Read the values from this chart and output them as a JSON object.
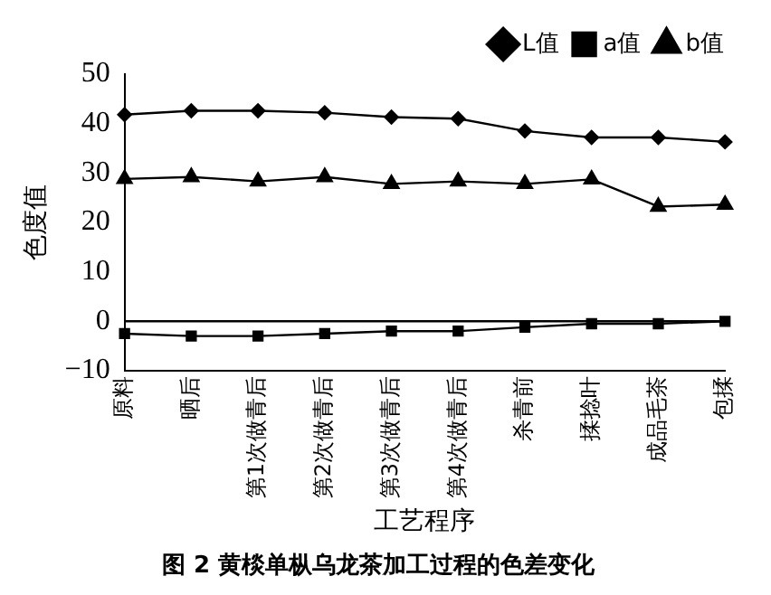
{
  "chart_data": {
    "type": "line",
    "title": "图 2 黄棪单枞乌龙茶加工过程的色差变化",
    "xlabel": "工艺程序",
    "ylabel": "色度值",
    "categories": [
      "原料",
      "晒后",
      "第1次做青后",
      "第2次做青后",
      "第3次做青后",
      "第4次做青后",
      "杀青前",
      "揉捻叶",
      "成品毛茶",
      "包揉"
    ],
    "series": [
      {
        "name": "L值",
        "color": "#000000",
        "marker": "diamond",
        "values": [
          41.8,
          42.6,
          42.6,
          42.2,
          41.3,
          41,
          38.5,
          37.2,
          37.2,
          36.3
        ]
      },
      {
        "name": "a值",
        "color": "#000000",
        "marker": "square",
        "values": [
          -2.5,
          -3,
          -3,
          -2.5,
          -2,
          -2,
          -1.2,
          -0.5,
          -0.5,
          0
        ]
      },
      {
        "name": "b值",
        "color": "#000000",
        "marker": "triangle",
        "values": [
          28.8,
          29.2,
          28.3,
          29.2,
          27.8,
          28.3,
          27.8,
          28.7,
          23.2,
          23.6
        ]
      }
    ],
    "ylim": [
      -10,
      50
    ],
    "yticks": [
      -10,
      0,
      10,
      20,
      30,
      40,
      50
    ],
    "grid": false,
    "legend": "top right",
    "line_style": "solid",
    "ref_lines": [
      {
        "axis": "y",
        "value": 0,
        "color": "#000000"
      }
    ]
  }
}
